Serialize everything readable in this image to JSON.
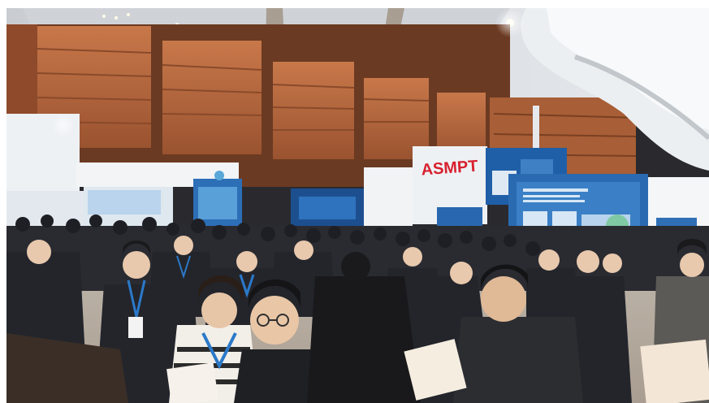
{
  "photo": {
    "booth_signs": {
      "right_booth_brand": "ASMPT"
    },
    "colors": {
      "ceiling": "#d9dde2",
      "wood_panel": "#b8683e",
      "wood_dark": "#7a3f22",
      "booth_white": "#eef1f4",
      "booth_blue": "#1f5fa8",
      "brand_red": "#d8202e",
      "crowd_dark": "#1e1f24",
      "floor": "#cfc7bd"
    }
  }
}
